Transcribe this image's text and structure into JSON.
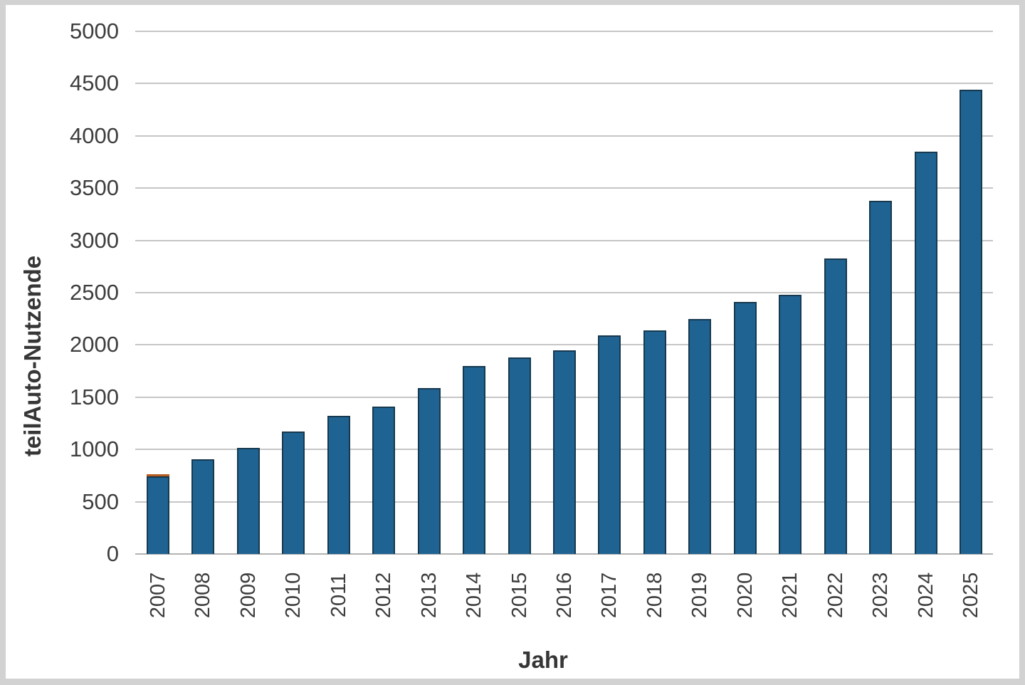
{
  "chart_data": {
    "type": "bar",
    "title": "",
    "xlabel": "Jahr",
    "ylabel": "teilAuto-Nutzende",
    "categories": [
      "2007",
      "2008",
      "2009",
      "2010",
      "2011",
      "2012",
      "2013",
      "2014",
      "2015",
      "2016",
      "2017",
      "2018",
      "2019",
      "2020",
      "2021",
      "2022",
      "2023",
      "2024",
      "2025"
    ],
    "values": [
      765,
      905,
      1015,
      1170,
      1320,
      1410,
      1590,
      1800,
      1880,
      1950,
      2090,
      2140,
      2250,
      2410,
      2480,
      2830,
      3380,
      3850,
      4440
    ],
    "overlay_cap": {
      "category": "2007",
      "value": 20,
      "color": "#b65c1e"
    },
    "ylim": [
      0,
      5000
    ],
    "ytick_step": 500,
    "yticks": [
      0,
      500,
      1000,
      1500,
      2000,
      2500,
      3000,
      3500,
      4000,
      4500,
      5000
    ],
    "grid": "horizontal",
    "legend": "none",
    "bar_color": "#1f6392",
    "bar_border_color": "#16394f",
    "gridline_color": "#c6c6c6",
    "text_color": "#3d3d3d",
    "frame_color": "#d2d2d2"
  }
}
